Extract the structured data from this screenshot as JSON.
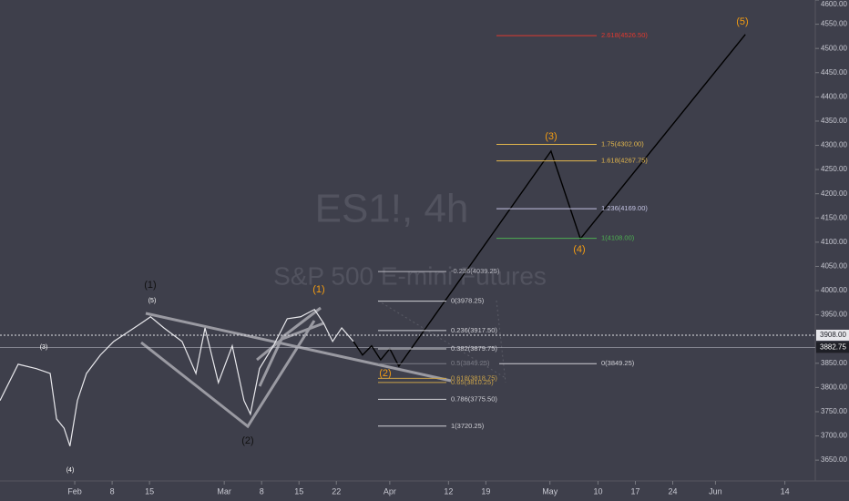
{
  "chart_data": {
    "type": "line",
    "title": "ES1!, 4h",
    "subtitle": "S&P 500 E-mini Futures",
    "xlim": [
      18,
      170.7
    ],
    "ylim": [
      3607,
      4600
    ],
    "xticks": [
      {
        "value": 32,
        "label": "Feb"
      },
      {
        "value": 39,
        "label": "8"
      },
      {
        "value": 46,
        "label": "15"
      },
      {
        "value": 60,
        "label": "Mar"
      },
      {
        "value": 67,
        "label": "8"
      },
      {
        "value": 74,
        "label": "15"
      },
      {
        "value": 81,
        "label": "22"
      },
      {
        "value": 91,
        "label": "Apr"
      },
      {
        "value": 102,
        "label": "12"
      },
      {
        "value": 109,
        "label": "19"
      },
      {
        "value": 121,
        "label": "May"
      },
      {
        "value": 130,
        "label": "10"
      },
      {
        "value": 137,
        "label": "17"
      },
      {
        "value": 144,
        "label": "24"
      },
      {
        "value": 152,
        "label": "Jun"
      },
      {
        "value": 165,
        "label": "14"
      }
    ],
    "yticks": [
      {
        "value": 3650,
        "label": "3650.00"
      },
      {
        "value": 3700,
        "label": "3700.00"
      },
      {
        "value": 3750,
        "label": "3750.00"
      },
      {
        "value": 3800,
        "label": "3800.00"
      },
      {
        "value": 3850,
        "label": "3850.00"
      },
      {
        "value": 3950,
        "label": "3950.00"
      },
      {
        "value": 4000,
        "label": "4000.00"
      },
      {
        "value": 4050,
        "label": "4050.00"
      },
      {
        "value": 4100,
        "label": "4100.00"
      },
      {
        "value": 4150,
        "label": "4150.00"
      },
      {
        "value": 4200,
        "label": "4200.00"
      },
      {
        "value": 4250,
        "label": "4250.00"
      },
      {
        "value": 4300,
        "label": "4300.00"
      },
      {
        "value": 4350,
        "label": "4350.00"
      },
      {
        "value": 4400,
        "label": "4400.00"
      },
      {
        "value": 4450,
        "label": "4450.00"
      },
      {
        "value": 4500,
        "label": "4500.00"
      },
      {
        "value": 4550,
        "label": "4550.00"
      },
      {
        "value": 4600,
        "label": "4600.00"
      }
    ],
    "series": [
      {
        "color": "#e8e8ec",
        "x": [
          18,
          21.4,
          24.8,
          27.4,
          28.6,
          30,
          31.1,
          32.5,
          34.2,
          36.8,
          39.3,
          41.9,
          44.5,
          46.2,
          48.7,
          52.1,
          54.7,
          56.4,
          58.9,
          61.5,
          63.7,
          64.9,
          66.6,
          69.2,
          71.8,
          74.3,
          76.9,
          78.6,
          80.3,
          82,
          84.2
        ],
        "values": [
          3773,
          3848,
          3839,
          3829,
          3735,
          3716,
          3679,
          3773,
          3829,
          3867,
          3895,
          3914,
          3933,
          3946,
          3923,
          3895,
          3829,
          3923,
          3810,
          3886,
          3773,
          3745,
          3839,
          3886,
          3942,
          3946,
          3961,
          3933,
          3895,
          3923,
          3895
        ]
      },
      {
        "color": "#000000",
        "x": [
          84.2,
          85.9,
          87.6,
          89.3,
          91,
          92.7,
          121.2,
          126.7,
          157.6
        ],
        "values": [
          3895,
          3867,
          3886,
          3857,
          3880,
          3844,
          4288,
          4107,
          4529
        ]
      }
    ],
    "price_tags": [
      {
        "value": 3908,
        "label": "3908.00"
      },
      {
        "value": 3882.75,
        "label": "3882.75"
      }
    ],
    "retracement": [
      {
        "value": 4039.25,
        "label": "-0.236(4039.25)",
        "color": "#b8b8c0"
      },
      {
        "value": 3978.25,
        "label": "0(3978.25)",
        "color": "#d0d0d6"
      },
      {
        "value": 3917.5,
        "label": "0.236(3917.50)",
        "color": "#d0d0d6"
      },
      {
        "value": 3879.75,
        "label": "0.382(3879.75)",
        "color": "#d0d0d6"
      },
      {
        "value": 3849.25,
        "label": "0.5(3849.25)",
        "color": "#7d7e88"
      },
      {
        "value": 3818.75,
        "label": "0.618(3818.75)",
        "color": "#c9a24a"
      },
      {
        "value": 3810.25,
        "label": "0.65(3810.25)",
        "color": "#c9a24a"
      },
      {
        "value": 3775.5,
        "label": "0.786(3775.50)",
        "color": "#d0d0d6"
      },
      {
        "value": 3720.25,
        "label": "1(3720.25)",
        "color": "#d0d0d6"
      }
    ],
    "extension": [
      {
        "value": 4526.5,
        "label": "2.618(4526.50)",
        "color": "#e0392f"
      },
      {
        "value": 4302,
        "label": "1.75(4302.00)",
        "color": "#e2b64c"
      },
      {
        "value": 4267.75,
        "label": "1.618(4267.75)",
        "color": "#e2b64c"
      },
      {
        "value": 4169,
        "label": "1.236(4169.00)",
        "color": "#c4c4e4"
      },
      {
        "value": 4108,
        "label": "1(4108.00)",
        "color": "#4caf50"
      },
      {
        "value": 3849.25,
        "label": "0(3849.25)",
        "color": "#d0d0d6"
      }
    ],
    "wave_labels": [
      {
        "label": "(1)",
        "color": "#111111"
      },
      {
        "label": "(5)",
        "color": "#ffffff"
      },
      {
        "label": "(3)",
        "color": "#ffffff"
      },
      {
        "label": "(4)",
        "color": "#ffffff"
      },
      {
        "label": "(2)",
        "color": "#111111"
      },
      {
        "label": "(1)",
        "color": "#f39c12"
      },
      {
        "label": "(2)",
        "color": "#f39c12"
      },
      {
        "label": "(3)",
        "color": "#f39c12"
      },
      {
        "label": "(4)",
        "color": "#f39c12"
      },
      {
        "label": "(5)",
        "color": "#f39c12"
      }
    ]
  }
}
